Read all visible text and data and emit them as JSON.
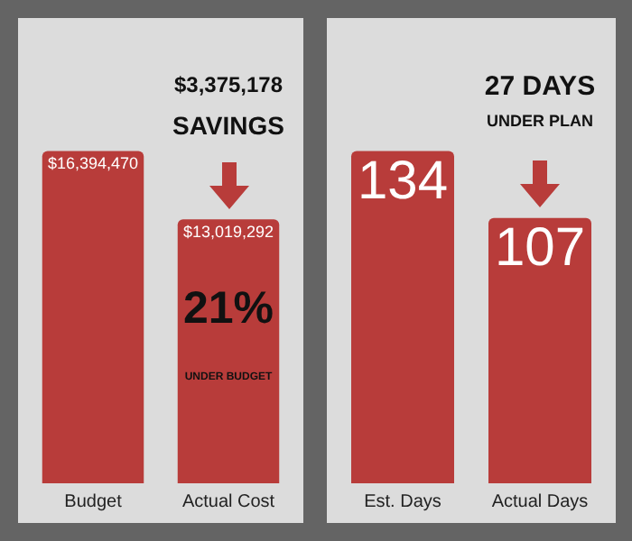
{
  "chart_data": [
    {
      "type": "bar",
      "categories": [
        "Budget",
        "Actual Cost"
      ],
      "values": [
        16394470,
        13019292
      ],
      "color": "#b83c3a",
      "value_labels": [
        "$16,394,470",
        "$13,019,292"
      ],
      "annotations": [
        "$3,375,178",
        "SAVINGS",
        "21%",
        "UNDER BUDGET"
      ],
      "grid": false,
      "legend": false
    },
    {
      "type": "bar",
      "categories": [
        "Est. Days",
        "Actual Days"
      ],
      "values": [
        134,
        107
      ],
      "color": "#b83c3a",
      "data_labels": true,
      "annotations": [
        "27 DAYS",
        "UNDER PLAN"
      ],
      "grid": false,
      "legend": false
    }
  ]
}
